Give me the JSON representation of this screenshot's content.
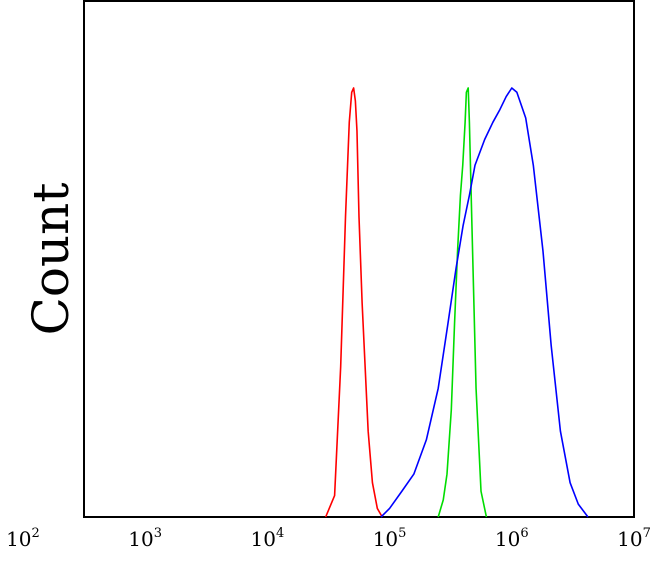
{
  "chart_data": {
    "type": "line",
    "title": "",
    "xlabel": "",
    "ylabel": "Count",
    "x_scale": "log",
    "xlim": [
      316,
      10000000
    ],
    "ylim": [
      0,
      1.0
    ],
    "grid": false,
    "xticks": [
      {
        "value": 100,
        "base": "10",
        "exp": "2"
      },
      {
        "value": 1000,
        "base": "10",
        "exp": "3"
      },
      {
        "value": 10000,
        "base": "10",
        "exp": "4"
      },
      {
        "value": 100000,
        "base": "10",
        "exp": "5"
      },
      {
        "value": 1000000,
        "base": "10",
        "exp": "6"
      },
      {
        "value": 10000000,
        "base": "10",
        "exp": "7"
      }
    ],
    "series": [
      {
        "color": "#ff0000",
        "x": [
          30000,
          35500,
          39800,
          43600,
          46800,
          49000,
          50800,
          52500,
          54100,
          56200,
          59600,
          63100,
          66800,
          72400,
          79400,
          87100
        ],
        "y": [
          0.0,
          0.05,
          0.35,
          0.7,
          0.92,
          0.99,
          1.0,
          0.97,
          0.9,
          0.7,
          0.5,
          0.35,
          0.2,
          0.08,
          0.02,
          0.0
        ]
      },
      {
        "color": "#00dd00",
        "x": [
          250000,
          275000,
          295000,
          320000,
          340000,
          360000,
          380000,
          397000,
          415000,
          425000,
          440000,
          450000,
          470000,
          510000,
          560000,
          620000
        ],
        "y": [
          0.0,
          0.04,
          0.1,
          0.25,
          0.45,
          0.62,
          0.75,
          0.82,
          0.92,
          0.99,
          1.0,
          0.92,
          0.7,
          0.3,
          0.06,
          0.0
        ]
      },
      {
        "color": "#0000ff",
        "x": [
          85000,
          100000,
          126000,
          158000,
          200000,
          250000,
          300000,
          350000,
          400000,
          450000,
          500000,
          600000,
          700000,
          800000,
          900000,
          1000000,
          1100000,
          1300000,
          1500000,
          1800000,
          2100000,
          2500000,
          3000000,
          3500000,
          4200000
        ],
        "y": [
          0.0,
          0.02,
          0.06,
          0.1,
          0.18,
          0.3,
          0.45,
          0.58,
          0.68,
          0.75,
          0.82,
          0.88,
          0.92,
          0.95,
          0.98,
          1.0,
          0.99,
          0.93,
          0.82,
          0.62,
          0.4,
          0.2,
          0.08,
          0.03,
          0.0
        ]
      }
    ]
  }
}
